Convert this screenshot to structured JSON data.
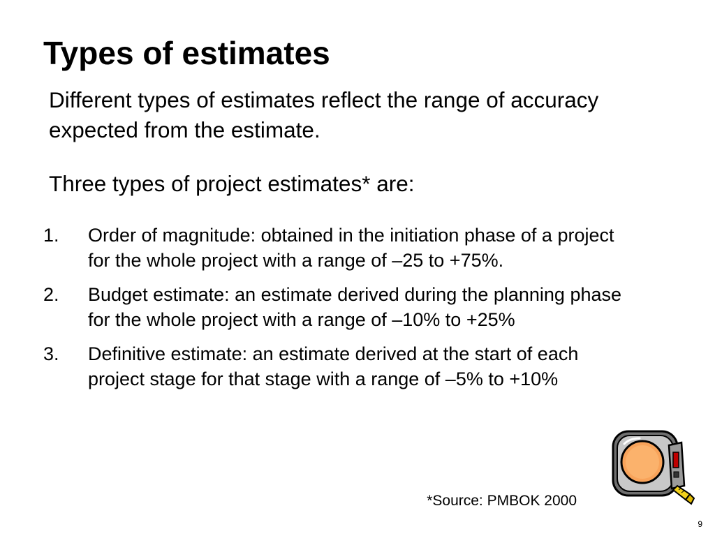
{
  "slide": {
    "title": "Types of estimates",
    "intro": "Different types of estimates reflect the range of accuracy expected from the estimate.",
    "intro2": "Three types of project estimates* are:",
    "items": [
      {
        "number": "1.",
        "text": "Order of magnitude: obtained in the initiation phase of a project  for the whole project with a range of –25 to +75%."
      },
      {
        "number": "2.",
        "text": "Budget estimate:  an estimate derived during the planning phase for the whole project with a range of –10% to +25%"
      },
      {
        "number": "3.",
        "text": "Definitive estimate: an estimate derived at the start of each project stage for that stage with a range of –5% to +10%"
      }
    ],
    "source": "*Source: PMBOK 2000",
    "page_number": "9"
  },
  "clipart": {
    "icon": "tape-measure-icon"
  },
  "colors": {
    "background": "#ffffff",
    "text": "#000000"
  }
}
